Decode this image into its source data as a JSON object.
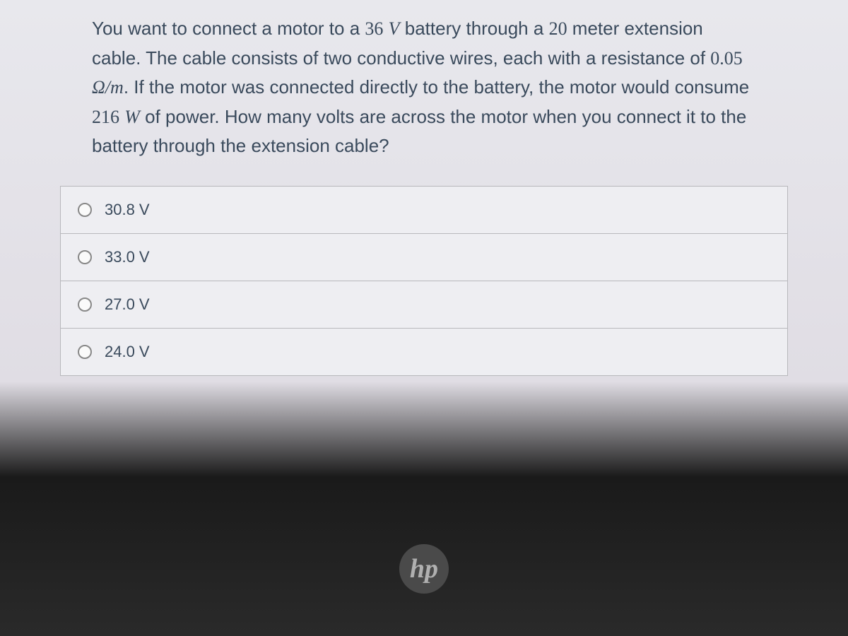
{
  "question": {
    "text_parts": [
      "You want to connect a motor to a ",
      "36",
      " ",
      "V",
      " battery through a ",
      "20",
      " meter extension cable. The cable consists of two conductive wires, each with a resistance of ",
      "0.05",
      " ",
      "Ω/m",
      ". If the motor was connected directly to the battery, the motor would consume ",
      "216",
      " ",
      "W",
      " of power. How many volts are across the motor when you connect it to the battery through the extension cable?"
    ]
  },
  "options": [
    {
      "label": "30.8 V"
    },
    {
      "label": "33.0 V"
    },
    {
      "label": "27.0 V"
    },
    {
      "label": "24.0 V"
    }
  ],
  "logo": {
    "text": "hp"
  },
  "colors": {
    "text_primary": "#3a4a5c",
    "border": "#b8b8bc",
    "option_bg": "#eeeef2",
    "radio_border": "#888"
  }
}
